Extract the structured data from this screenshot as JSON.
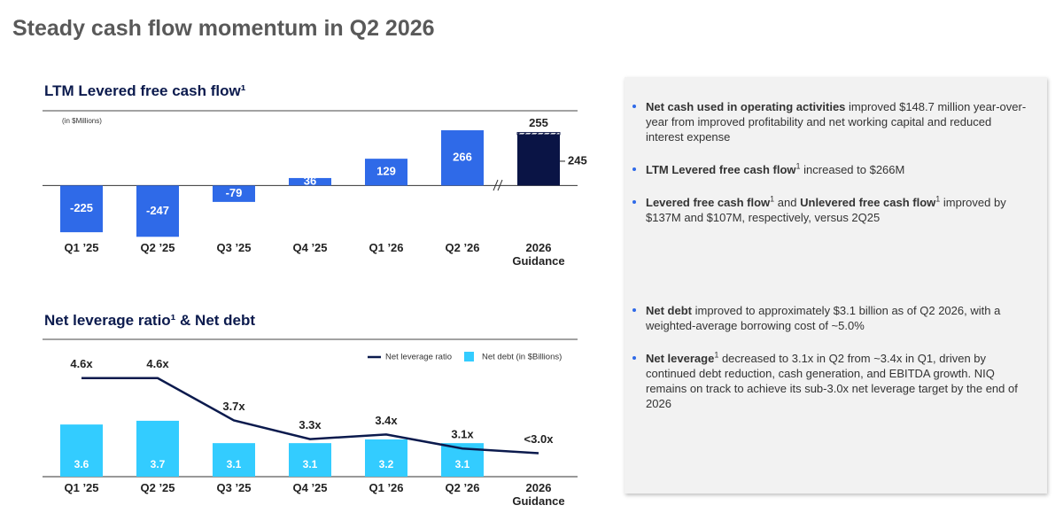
{
  "title": "Steady cash flow momentum in Q2 2026",
  "chart_data": [
    {
      "type": "bar",
      "title": "LTM Levered free cash flow¹",
      "unit_note": "(in $Millions)",
      "categories": [
        "Q1 ’25",
        "Q2 ’25",
        "Q3 ’25",
        "Q4 ’25",
        "Q1 ’26",
        "Q2 ’26",
        "2026 Guidance"
      ],
      "values": [
        -225,
        -247,
        -79,
        36,
        129,
        266,
        null
      ],
      "color": "#2f6ae8",
      "guidance": {
        "low": 245,
        "high": 255,
        "color": "#0a1445"
      },
      "ylim": [
        -280,
        360
      ]
    },
    {
      "type": "combo",
      "title": "Net leverage ratio¹ & Net debt",
      "categories": [
        "Q1 ’25",
        "Q2 ’25",
        "Q3 ’25",
        "Q4 ’25",
        "Q1 ’26",
        "Q2 ’26",
        "2026 Guidance"
      ],
      "series": [
        {
          "name": "Net leverage ratio",
          "type": "line",
          "color": "#0b1a4d",
          "values": [
            4.6,
            4.6,
            3.7,
            3.3,
            3.4,
            3.1,
            3.0
          ],
          "value_labels": [
            "4.6x",
            "4.6x",
            "3.7x",
            "3.3x",
            "3.4x",
            "3.1x",
            "<3.0x"
          ]
        },
        {
          "name": "Net debt (in $Billions)",
          "type": "bar",
          "axis": "y2",
          "color": "#33ccff",
          "values": [
            3.6,
            3.7,
            3.1,
            3.1,
            3.2,
            3.1,
            null
          ]
        }
      ],
      "ylim": [
        2.5,
        5.2
      ],
      "y2lim": [
        2.2,
        5.6
      ],
      "legend": "top-right"
    }
  ],
  "panel": {
    "bullets": [
      {
        "parts": [
          {
            "text": "Net cash used in operating activities",
            "bold": true
          },
          {
            "text": " improved $148.7 million year-over-year from improved profitability and net working capital and reduced interest expense"
          }
        ]
      },
      {
        "parts": [
          {
            "text": "LTM Levered free cash flow",
            "bold": true
          },
          {
            "text": "1",
            "sup": true
          },
          {
            "text": " increased to $266M"
          }
        ]
      },
      {
        "parts": [
          {
            "text": "Levered free cash flow",
            "bold": true
          },
          {
            "text": "1",
            "sup": true
          },
          {
            "text": " and "
          },
          {
            "text": "Unlevered free cash flow",
            "bold": true
          },
          {
            "text": "1",
            "sup": true
          },
          {
            "text": " improved by $137M and $107M, respectively, versus 2Q25"
          }
        ]
      },
      {
        "parts": [
          {
            "text": "Net debt",
            "bold": true
          },
          {
            "text": " improved to approximately $3.1 billion as of Q2 2026, with a weighted-average borrowing cost of ~5.0%"
          }
        ]
      },
      {
        "parts": [
          {
            "text": "Net leverage",
            "bold": true
          },
          {
            "text": "1",
            "sup": true
          },
          {
            "text": " decreased to 3.1x in Q2 from ~3.4x in Q1, driven by continued debt reduction, cash generation, and EBITDA growth. NIQ remains on track to achieve its sub-3.0x net leverage target by the end of 2026"
          }
        ]
      }
    ]
  }
}
